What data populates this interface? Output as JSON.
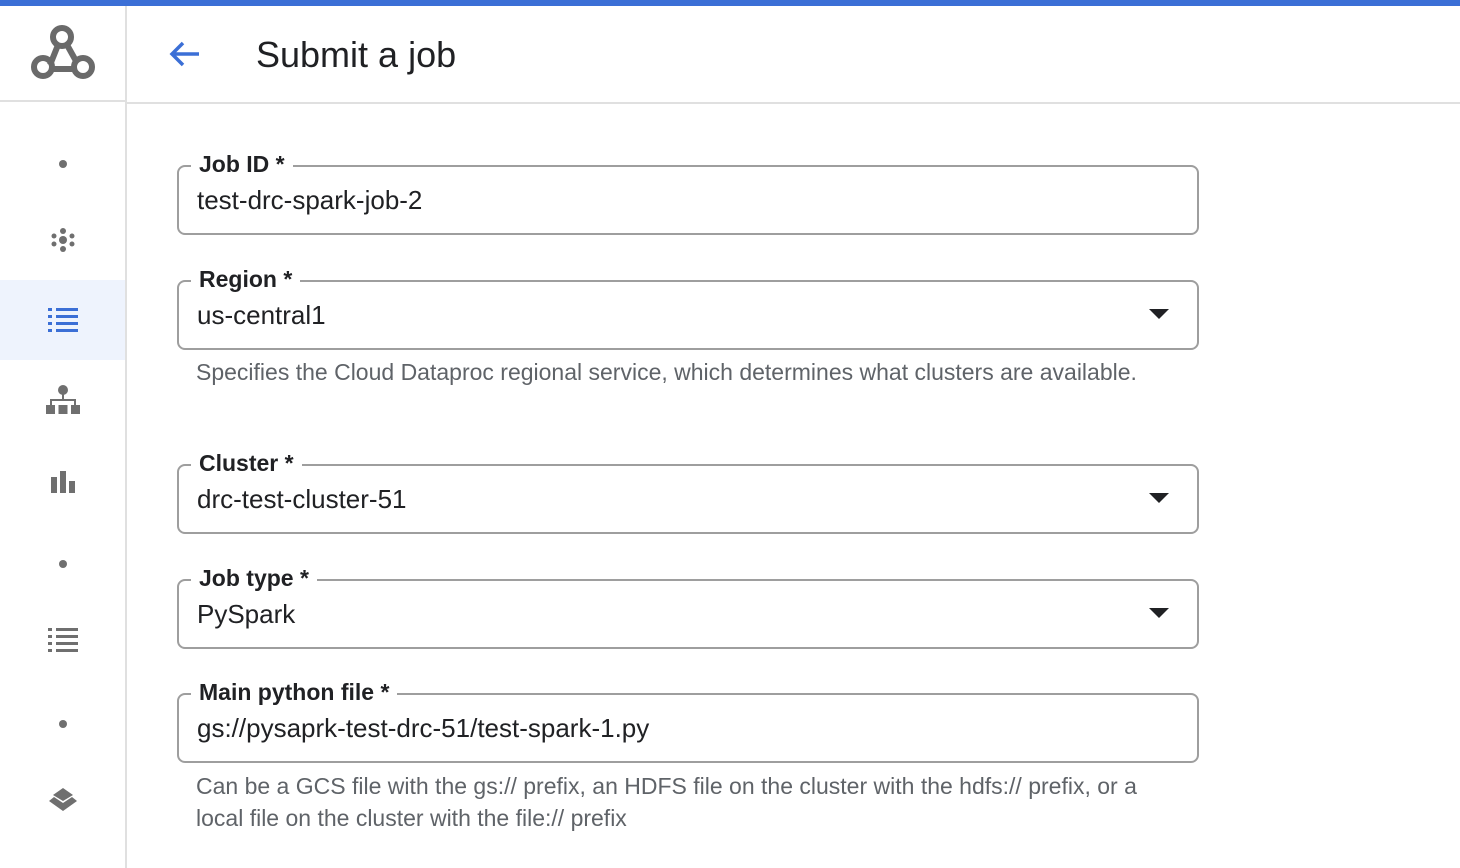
{
  "header": {
    "title": "Submit a job"
  },
  "sidebar": {
    "items": [
      "dot",
      "cluster-dots",
      "list-active",
      "hierarchy",
      "bar-chart",
      "dot",
      "list",
      "dot",
      "layers",
      "more"
    ]
  },
  "form": {
    "job_id": {
      "label": "Job ID *",
      "value": "test-drc-spark-job-2"
    },
    "region": {
      "label": "Region *",
      "value": "us-central1",
      "help": "Specifies the Cloud Dataproc regional service, which determines what clusters are available."
    },
    "cluster": {
      "label": "Cluster *",
      "value": "drc-test-cluster-51"
    },
    "job_type": {
      "label": "Job type *",
      "value": "PySpark"
    },
    "main_file": {
      "label": "Main python file *",
      "value": "gs://pysaprk-test-drc-51/test-spark-1.py",
      "help": "Can be a GCS file with the gs:// prefix, an HDFS file on the cluster with the hdfs:// prefix, or a local file on the cluster with the file:// prefix"
    }
  },
  "colors": {
    "accent": "#3b6fd6",
    "icon": "#6f6f6f"
  }
}
